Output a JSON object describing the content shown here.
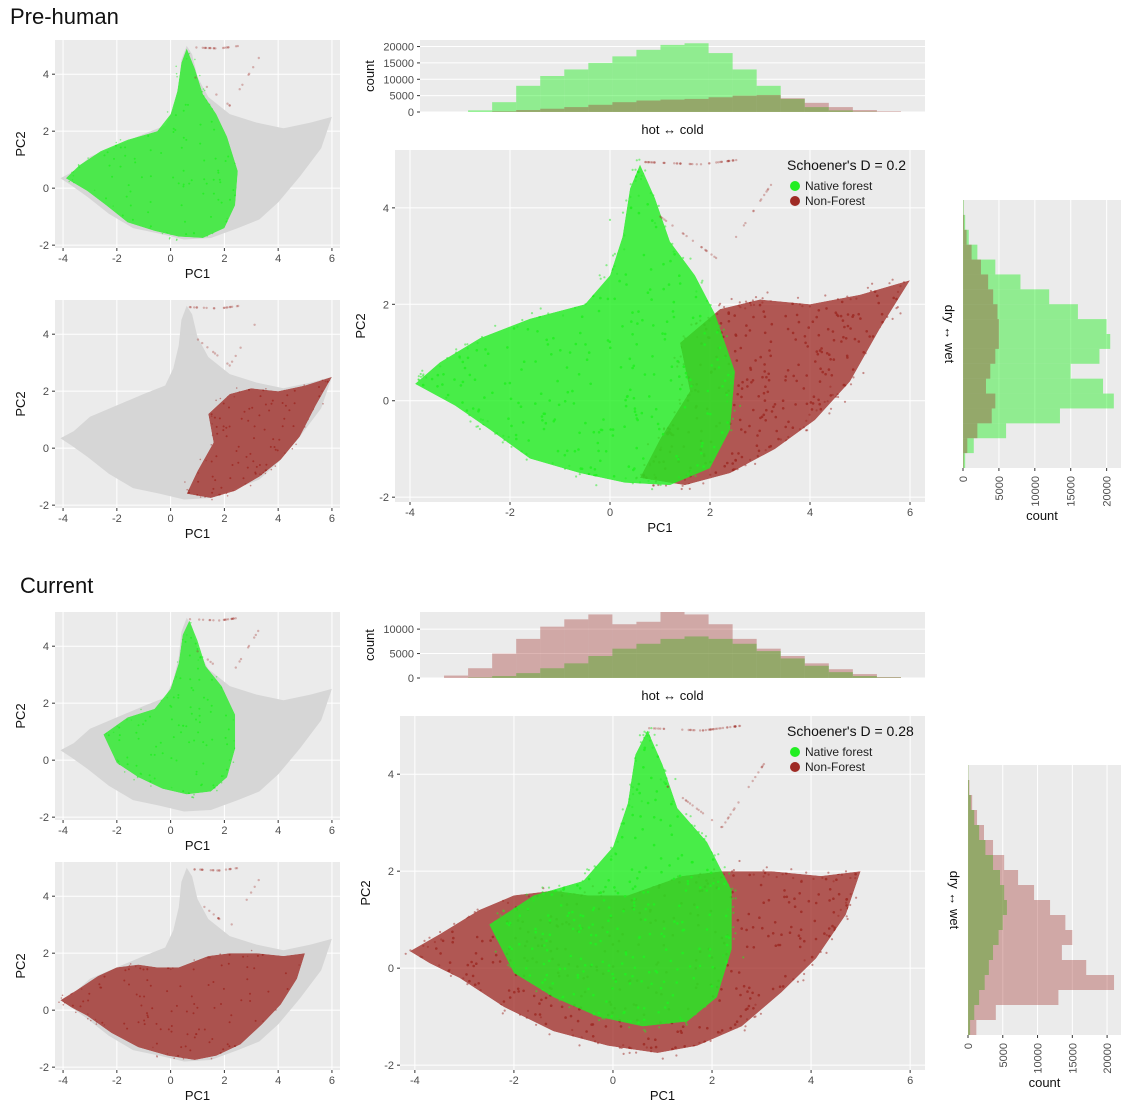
{
  "colors": {
    "native": "#22ee22",
    "nonforest": "#9e2a24",
    "background_cloud": "#d6d6d6",
    "panel": "#ebebeb",
    "grid": "#ffffff"
  },
  "sections": [
    {
      "title": "Pre-human",
      "schoener_label": "Schoener's D = 0.2",
      "legend": [
        "Native forest",
        "Non-Forest"
      ],
      "top_hist": {
        "xlabel": "hot ↔ cold",
        "ylabel": "count",
        "yticks": [
          "0",
          "5000",
          "10000",
          "15000",
          "20000"
        ],
        "ymax": 22000,
        "native": [
          0,
          0,
          500,
          3000,
          8000,
          11000,
          13000,
          15000,
          17000,
          19000,
          20500,
          21000,
          18000,
          13000,
          8000,
          4000,
          1500,
          500,
          100,
          0,
          0
        ],
        "nonforest": [
          0,
          0,
          0,
          200,
          600,
          1000,
          1500,
          2200,
          3000,
          3500,
          3800,
          4000,
          4500,
          5000,
          5200,
          4200,
          2800,
          1500,
          600,
          200,
          0
        ]
      },
      "right_hist": {
        "ylabel": "dry ↔ wet",
        "xlabel": "count",
        "xticks": [
          "0",
          "5000",
          "10000",
          "15000",
          "20000"
        ],
        "xmax": 22000,
        "native": [
          100,
          300,
          800,
          2000,
          4500,
          8000,
          12000,
          16000,
          20000,
          20500,
          19000,
          15000,
          19500,
          21000,
          13500,
          6000,
          1500,
          300
        ],
        "nonforest": [
          50,
          150,
          500,
          1200,
          2500,
          3500,
          4200,
          4800,
          5000,
          5000,
          4500,
          3800,
          3200,
          4500,
          4000,
          2000,
          600,
          100
        ]
      },
      "main_scatter": {
        "xlabel": "PC1",
        "ylabel": "PC2",
        "xticks": [
          "-4",
          "-2",
          "0",
          "2",
          "4",
          "6"
        ],
        "yticks": [
          "-2",
          "0",
          "2",
          "4"
        ]
      },
      "small_scatters": [
        {
          "highlight": "native",
          "xlabel": "PC1",
          "ylabel": "PC2",
          "xticks": [
            "-4",
            "-2",
            "0",
            "2",
            "4",
            "6"
          ],
          "yticks": [
            "-2",
            "0",
            "2",
            "4"
          ]
        },
        {
          "highlight": "nonforest",
          "xlabel": "PC1",
          "ylabel": "PC2",
          "xticks": [
            "-4",
            "-2",
            "0",
            "2",
            "4",
            "6"
          ],
          "yticks": [
            "-2",
            "0",
            "2",
            "4"
          ]
        }
      ]
    },
    {
      "title": "Current",
      "schoener_label": "Schoener's D = 0.28",
      "legend": [
        "Native forest",
        "Non-Forest"
      ],
      "top_hist": {
        "xlabel": "hot ↔ cold",
        "ylabel": "count",
        "yticks": [
          "0",
          "5000",
          "10000"
        ],
        "ymax": 13500,
        "native": [
          0,
          0,
          100,
          400,
          1000,
          2000,
          3000,
          4500,
          6000,
          7000,
          8000,
          8500,
          8000,
          7000,
          5500,
          4000,
          2500,
          1200,
          400,
          100,
          0
        ],
        "nonforest": [
          0,
          500,
          2000,
          5000,
          8000,
          10500,
          12000,
          13000,
          11000,
          11500,
          13500,
          13000,
          11000,
          8000,
          6000,
          4500,
          3000,
          1800,
          800,
          200,
          0
        ]
      },
      "right_hist": {
        "ylabel": "dry ↔ wet",
        "xlabel": "count",
        "xticks": [
          "0",
          "5000",
          "10000",
          "15000",
          "20000"
        ],
        "xmax": 22000,
        "native": [
          50,
          150,
          400,
          900,
          1600,
          2500,
          3600,
          4600,
          5200,
          5600,
          5000,
          4400,
          3600,
          3000,
          2400,
          1600,
          900,
          300
        ],
        "nonforest": [
          50,
          200,
          600,
          1300,
          2300,
          3600,
          5200,
          7200,
          9500,
          11800,
          14000,
          15000,
          13500,
          17000,
          21000,
          13000,
          4000,
          1200
        ]
      },
      "main_scatter": {
        "xlabel": "PC1",
        "ylabel": "PC2",
        "xticks": [
          "-4",
          "-2",
          "0",
          "2",
          "4",
          "6"
        ],
        "yticks": [
          "-2",
          "0",
          "2",
          "4"
        ]
      },
      "small_scatters": [
        {
          "highlight": "native",
          "xlabel": "PC1",
          "ylabel": "PC2",
          "xticks": [
            "-4",
            "-2",
            "0",
            "2",
            "4",
            "6"
          ],
          "yticks": [
            "-2",
            "0",
            "2",
            "4"
          ]
        },
        {
          "highlight": "nonforest",
          "xlabel": "PC1",
          "ylabel": "PC2",
          "xticks": [
            "-4",
            "-2",
            "0",
            "2",
            "4",
            "6"
          ],
          "yticks": [
            "-2",
            "0",
            "2",
            "4"
          ]
        }
      ]
    }
  ],
  "chart_data": [
    {
      "type": "scatter",
      "title": "Pre-human",
      "xlabel": "PC1",
      "ylabel": "PC2",
      "xlim": [
        -4.3,
        6.3
      ],
      "ylim": [
        -2.1,
        5.2
      ],
      "series": [
        {
          "name": "Native forest"
        },
        {
          "name": "Non-Forest"
        }
      ],
      "annotation": "Schoener's D = 0.2"
    },
    {
      "type": "bar",
      "xlabel": "hot ↔ cold",
      "ylabel": "count",
      "ylim": [
        0,
        22000
      ]
    },
    {
      "type": "bar",
      "xlabel": "count",
      "ylabel": "dry ↔ wet",
      "xlim": [
        0,
        22000
      ]
    },
    {
      "type": "scatter",
      "title": "Current",
      "xlabel": "PC1",
      "ylabel": "PC2",
      "xlim": [
        -4.3,
        6.3
      ],
      "ylim": [
        -2.1,
        5.2
      ],
      "series": [
        {
          "name": "Native forest"
        },
        {
          "name": "Non-Forest"
        }
      ],
      "annotation": "Schoener's D = 0.28"
    },
    {
      "type": "bar",
      "xlabel": "hot ↔ cold",
      "ylabel": "count",
      "ylim": [
        0,
        13500
      ]
    },
    {
      "type": "bar",
      "xlabel": "count",
      "ylabel": "dry ↔ wet",
      "xlim": [
        0,
        22000
      ]
    }
  ]
}
